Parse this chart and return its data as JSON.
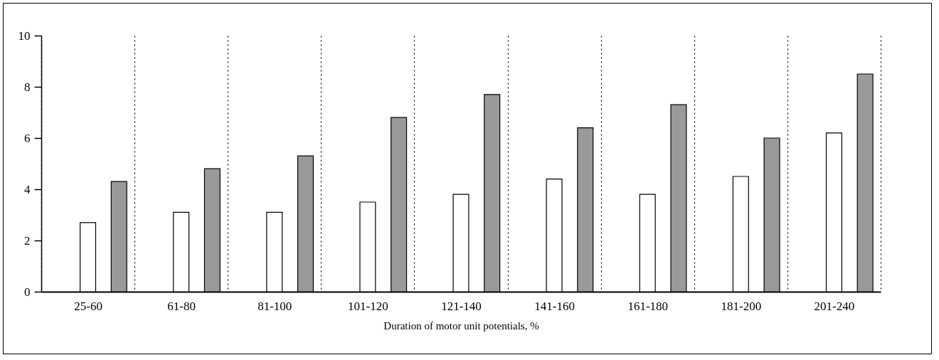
{
  "chart_data": {
    "type": "bar",
    "xlabel": "Duration of motor unit potentials, %",
    "categories": [
      "25-60",
      "61-80",
      "81-100",
      "101-120",
      "121-140",
      "141-160",
      "161-180",
      "181-200",
      "201-240"
    ],
    "series": [
      {
        "color": "#ffffff",
        "values": [
          2.7,
          3.1,
          3.1,
          3.5,
          3.8,
          4.4,
          3.8,
          4.5,
          6.2
        ]
      },
      {
        "color": "#9a9a9a",
        "values": [
          4.3,
          4.8,
          5.3,
          6.8,
          7.7,
          6.4,
          7.3,
          6.0,
          8.5
        ]
      }
    ],
    "ylim": [
      0,
      10
    ],
    "yticks": [
      0,
      2,
      4,
      6,
      8,
      10
    ],
    "grid": "x"
  }
}
